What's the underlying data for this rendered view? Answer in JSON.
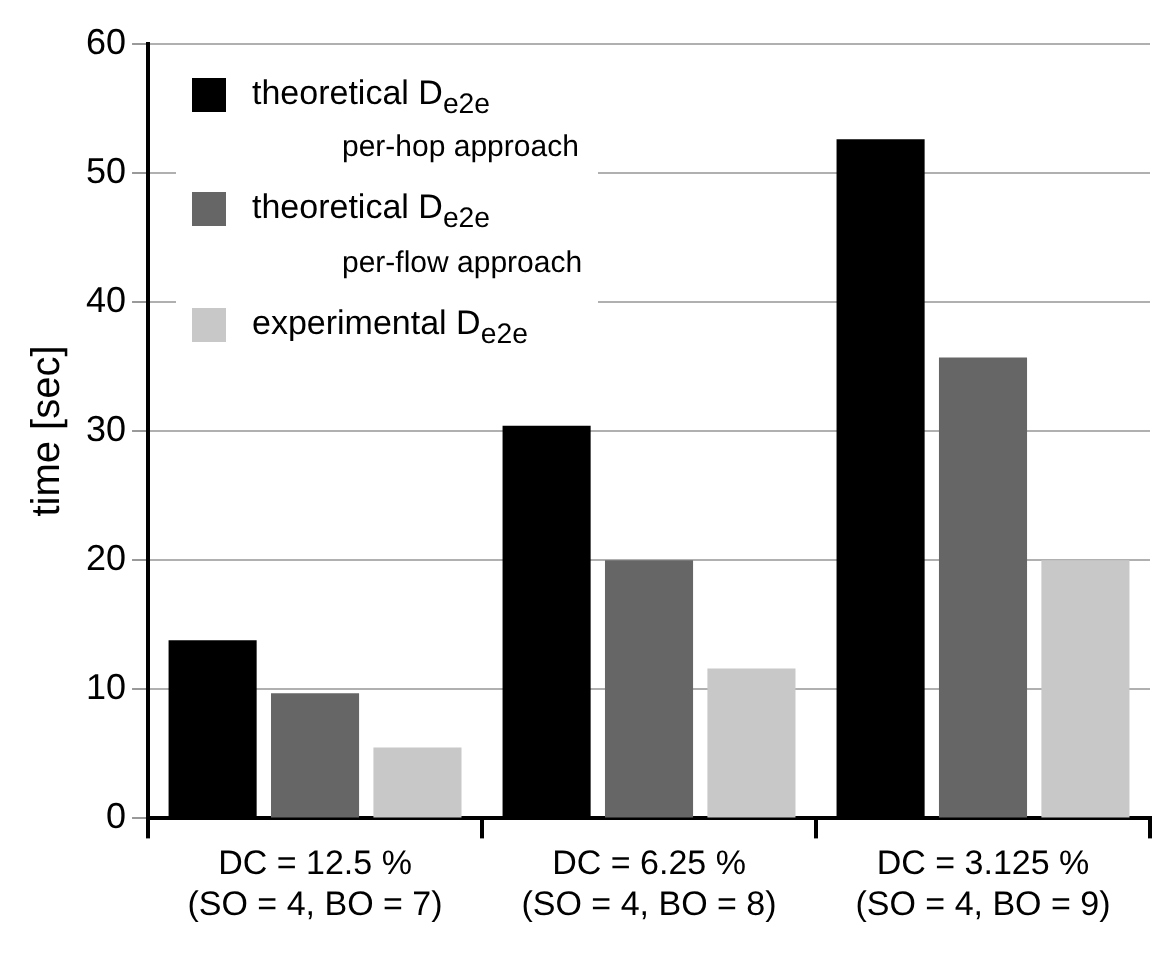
{
  "chart_data": {
    "type": "bar",
    "ylabel": "time [sec]",
    "categories": [
      "DC = 12.5 %\n(SO = 4, BO = 7)",
      "DC = 6.25 %\n(SO = 4, BO = 8)",
      "DC = 3.125 %\n(SO = 4, BO = 9)"
    ],
    "series": [
      {
        "name": "theoretical D$_{e2e}$\nper-hop approach",
        "color": "#000000",
        "values": [
          13.8,
          30.4,
          52.6
        ]
      },
      {
        "name": "theoretical D$_{e2e}$\nper-flow approach",
        "color": "#666666",
        "values": [
          9.7,
          20.0,
          35.7
        ]
      },
      {
        "name": "experimental D$_{e2e}$",
        "color": "#c8c8c8",
        "values": [
          5.5,
          11.6,
          20.0
        ]
      }
    ],
    "ylim": [
      0,
      60
    ],
    "yticks": [
      0,
      10,
      20,
      30,
      40,
      50,
      60
    ],
    "grid": "y",
    "legend": "top left"
  }
}
